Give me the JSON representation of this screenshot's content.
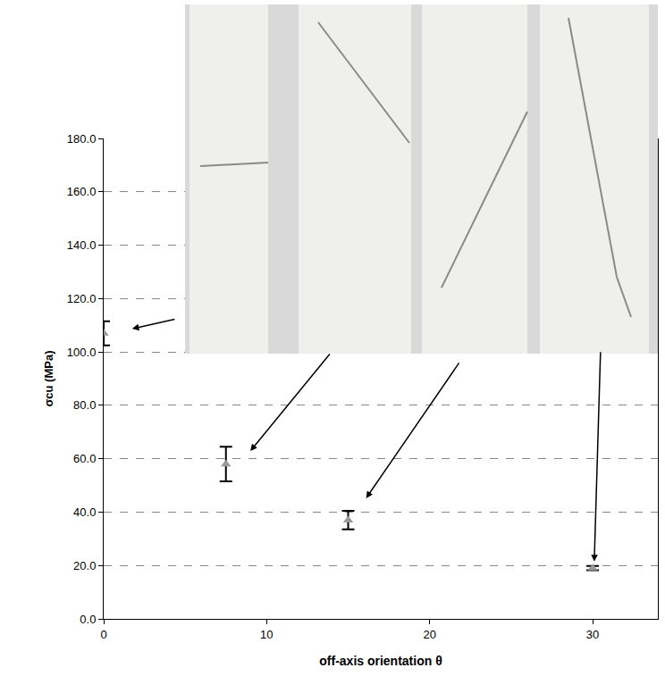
{
  "chart_data": {
    "type": "scatter",
    "x_label": "off-axis orientation θ",
    "y_label": "σcu (MPa)",
    "x": [
      0,
      7.5,
      15,
      30
    ],
    "values": [
      107,
      58,
      37,
      19
    ],
    "errors": [
      4.5,
      6.5,
      3.5,
      0.8
    ],
    "color": "#999999",
    "marker": "triangle-up",
    "xlim": [
      0,
      34
    ],
    "xticks": [
      0,
      10,
      20,
      30
    ],
    "ylim": [
      0,
      180
    ],
    "yticks": [
      {
        "value": 0,
        "label": "0.0"
      },
      {
        "value": 20,
        "label": "20.0"
      },
      {
        "value": 40,
        "label": "40.0"
      },
      {
        "value": 60,
        "label": "60.0"
      },
      {
        "value": 80,
        "label": "80.0"
      },
      {
        "value": 100,
        "label": "100.0"
      },
      {
        "value": 120,
        "label": "120.0"
      },
      {
        "value": 140,
        "label": "140.0"
      },
      {
        "value": 160,
        "label": "160.0"
      },
      {
        "value": 180,
        "label": "180.0"
      }
    ],
    "grid": true
  }
}
